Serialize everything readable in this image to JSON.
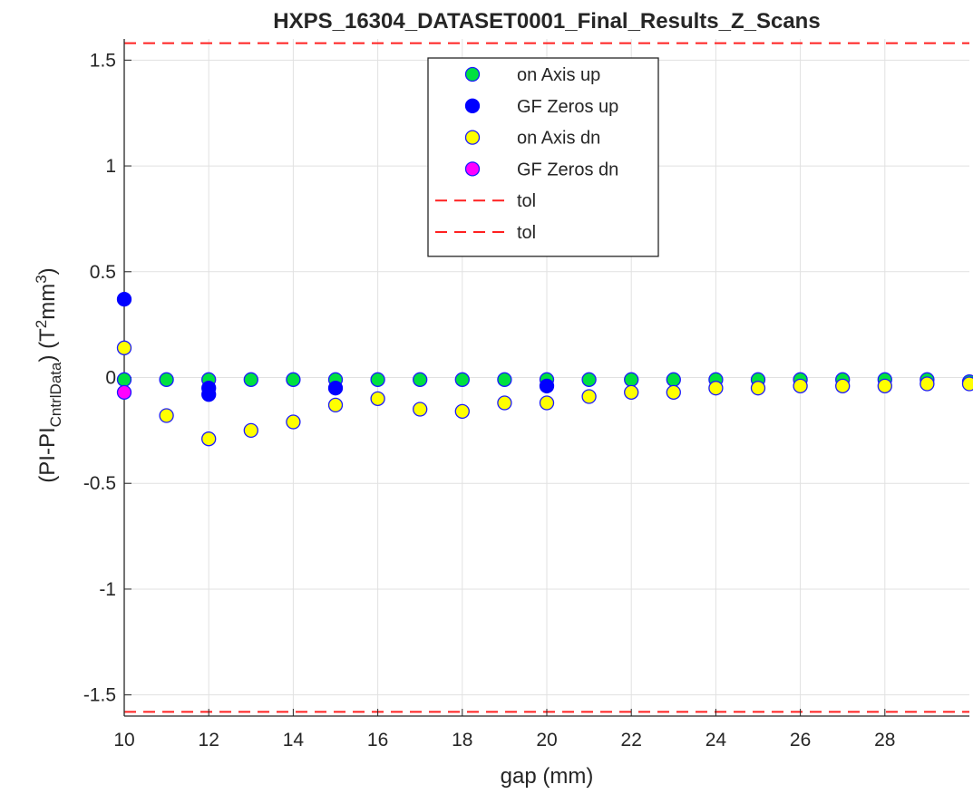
{
  "chart_data": {
    "type": "scatter",
    "title": "HXPS_16304_DATASET0001_Final_Results_Z_Scans",
    "xlabel": "gap (mm)",
    "ylabel": {
      "open": "(PI-PI",
      "subscript": "CntrlData",
      "mid": ") (T",
      "sup1": "2",
      "unit": "mm",
      "sup2": "3",
      "close": ")"
    },
    "xlim": [
      10,
      30
    ],
    "ylim": [
      -1.6,
      1.6
    ],
    "xticks": [
      10,
      12,
      14,
      16,
      18,
      20,
      22,
      24,
      26,
      28
    ],
    "xtick_labels": [
      "10",
      "12",
      "14",
      "16",
      "18",
      "20",
      "22",
      "24",
      "26",
      "28"
    ],
    "yticks": [
      -1.5,
      -1,
      -0.5,
      0,
      0.5,
      1,
      1.5
    ],
    "ytick_labels": [
      "-1.5",
      "-1",
      "-0.5",
      "0",
      "0.5",
      "1",
      "1.5"
    ],
    "grid": true,
    "legend_position": "top-center",
    "series": [
      {
        "name": "on Axis up",
        "marker": "circle",
        "face_color": "#00e040",
        "edge_color": "#1a1aff",
        "x": [
          10,
          11,
          12,
          13,
          14,
          15,
          16,
          17,
          18,
          19,
          20,
          21,
          22,
          23,
          24,
          25,
          26,
          27,
          28,
          29,
          30
        ],
        "y": [
          -0.01,
          -0.01,
          -0.01,
          -0.01,
          -0.01,
          -0.01,
          -0.01,
          -0.01,
          -0.01,
          -0.01,
          -0.01,
          -0.01,
          -0.01,
          -0.01,
          -0.01,
          -0.01,
          -0.01,
          -0.01,
          -0.01,
          -0.01,
          -0.02
        ]
      },
      {
        "name": "GF Zeros up",
        "marker": "circle",
        "face_color": "#0000ff",
        "edge_color": "#0000ff",
        "x": [
          10,
          12,
          12,
          15,
          20
        ],
        "y": [
          0.37,
          -0.05,
          -0.08,
          -0.05,
          -0.04
        ]
      },
      {
        "name": "on Axis dn",
        "marker": "circle",
        "face_color": "#ffff00",
        "edge_color": "#1a1aff",
        "x": [
          10,
          11,
          12,
          13,
          14,
          15,
          16,
          17,
          18,
          19,
          20,
          21,
          22,
          23,
          24,
          25,
          26,
          27,
          28,
          29,
          30
        ],
        "y": [
          0.14,
          -0.18,
          -0.29,
          -0.25,
          -0.21,
          -0.13,
          -0.1,
          -0.15,
          -0.16,
          -0.12,
          -0.12,
          -0.09,
          -0.07,
          -0.07,
          -0.05,
          -0.05,
          -0.04,
          -0.04,
          -0.04,
          -0.03,
          -0.03
        ]
      },
      {
        "name": "GF Zeros dn",
        "marker": "circle",
        "face_color": "#ff00ff",
        "edge_color": "#1a1aff",
        "x": [
          10
        ],
        "y": [
          -0.07
        ]
      },
      {
        "name": "tol",
        "line_style": "dashed",
        "color": "#ff2020",
        "x": [
          10,
          30
        ],
        "y": [
          1.58,
          1.58
        ]
      },
      {
        "name": "tol",
        "line_style": "dashed",
        "color": "#ff2020",
        "x": [
          10,
          30
        ],
        "y": [
          -1.58,
          -1.58
        ]
      }
    ]
  }
}
